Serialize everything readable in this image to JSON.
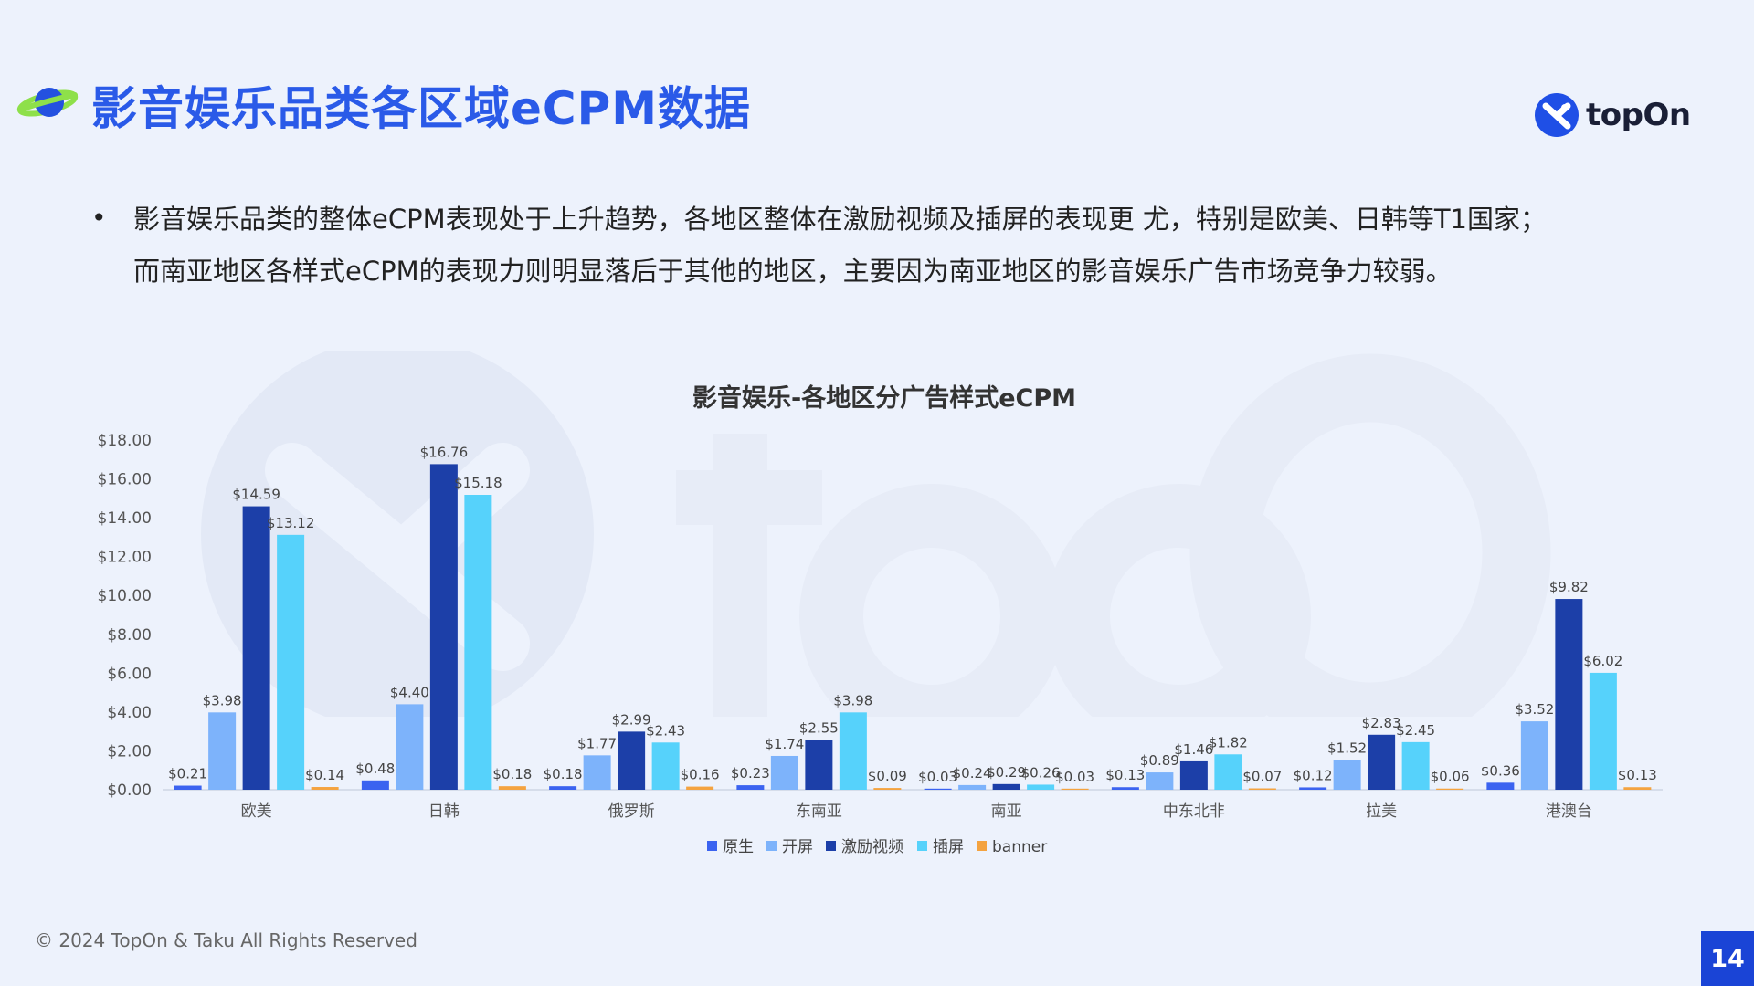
{
  "header": {
    "title": "影音娱乐品类各区域eCPM数据",
    "icon": "planet-icon",
    "brand_name": "topOn",
    "brand_icon": "topon-logo-icon"
  },
  "summary": {
    "bullet_line_1": "影音娱乐品类的整体eCPM表现处于上升趋势，各地区整体在激励视频及插屏的表现更 尤，特别是欧美、日韩等T1国家；",
    "bullet_line_2": "而南亚地区各样式eCPM的表现力则明显落后于其他的地区，主要因为南亚地区的影音娱乐广告市场竞争力较弱。"
  },
  "chart_data": {
    "type": "bar",
    "title": "影音娱乐-各地区分广告样式eCPM",
    "xlabel": "",
    "ylabel": "",
    "ylim": [
      0,
      18
    ],
    "yticks": [
      "$0.00",
      "$2.00",
      "$4.00",
      "$6.00",
      "$8.00",
      "$10.00",
      "$12.00",
      "$14.00",
      "$16.00",
      "$18.00"
    ],
    "categories": [
      "欧美",
      "日韩",
      "俄罗斯",
      "东南亚",
      "南亚",
      "中东北非",
      "拉美",
      "港澳台"
    ],
    "series": [
      {
        "name": "原生",
        "color": "#3b63f0",
        "values": [
          0.21,
          0.48,
          0.18,
          0.23,
          0.03,
          0.13,
          0.12,
          0.36
        ],
        "labels": [
          "$0.21",
          "$0.48",
          "$0.18",
          "$0.23",
          "$0.03",
          "$0.13",
          "$0.12",
          "$0.36"
        ]
      },
      {
        "name": "开屏",
        "color": "#7db3fb",
        "values": [
          3.98,
          4.4,
          1.77,
          1.74,
          0.24,
          0.89,
          1.52,
          3.52
        ],
        "labels": [
          "$3.98",
          "$4.40",
          "$1.77",
          "$1.74",
          "$0.24",
          "$0.89",
          "$1.52",
          "$3.52"
        ]
      },
      {
        "name": "激励视频",
        "color": "#1c3fa8",
        "values": [
          14.59,
          16.76,
          2.99,
          2.55,
          0.29,
          1.46,
          2.83,
          9.82
        ],
        "labels": [
          "$14.59",
          "$16.76",
          "$2.99",
          "$2.55",
          "$0.29",
          "$1.46",
          "$2.83",
          "$9.82"
        ]
      },
      {
        "name": "插屏",
        "color": "#56d2fb",
        "values": [
          13.12,
          15.18,
          2.43,
          3.98,
          0.26,
          1.82,
          2.45,
          6.02
        ],
        "labels": [
          "$13.12",
          "$15.18",
          "$2.43",
          "$3.98",
          "$0.26",
          "$1.82",
          "$2.45",
          "$6.02"
        ]
      },
      {
        "name": "banner",
        "color": "#f4a340",
        "values": [
          0.14,
          0.18,
          0.16,
          0.09,
          0.03,
          0.07,
          0.06,
          0.13
        ],
        "labels": [
          "$0.14",
          "$0.18",
          "$0.16",
          "$0.09",
          "$0.03",
          "$0.07",
          "$0.06",
          "$0.13"
        ]
      }
    ],
    "legend_position": "bottom",
    "grid": false
  },
  "footer": {
    "copyright": "© 2024 TopOn & Taku All Rights Reserved",
    "page_number": "14"
  },
  "colors": {
    "background": "#edf2fc",
    "title": "#2a5ae8",
    "page_badge": "#1a44d6"
  }
}
